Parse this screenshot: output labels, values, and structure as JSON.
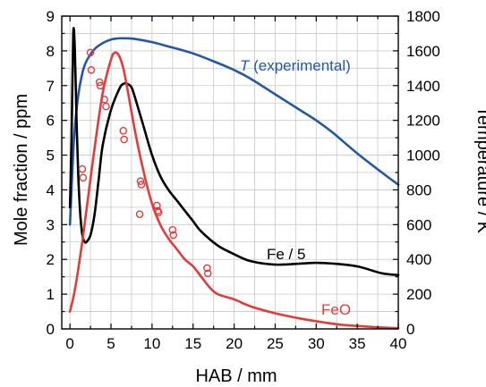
{
  "chart_data": {
    "type": "line",
    "xlabel": "HAB / mm",
    "ylabel_left": "Mole fraction / ppm",
    "ylabel_right": "Temperature / K",
    "xlim": [
      -1,
      40
    ],
    "ylim_left": [
      0,
      9
    ],
    "ylim_right": [
      0,
      1800
    ],
    "x_ticks": [
      0,
      5,
      10,
      15,
      20,
      25,
      30,
      35,
      40
    ],
    "y_left_ticks": [
      0,
      1,
      2,
      3,
      4,
      5,
      6,
      7,
      8,
      9
    ],
    "y_right_ticks": [
      0,
      200,
      400,
      600,
      800,
      1000,
      1200,
      1400,
      1600,
      1800
    ],
    "grid": true,
    "colors": {
      "temperature": "#2457a6",
      "feo": "#e03c3c",
      "fe": "#000000",
      "markers": "#e03c3c"
    },
    "annotations": {
      "temperature_italic": "T",
      "temperature_rest": " (experimental)",
      "fe": "Fe / 5",
      "feo": "FeO"
    },
    "series": [
      {
        "key": "temperature",
        "axis": "right",
        "x": [
          0,
          0.5,
          1,
          1.5,
          2,
          3,
          4,
          5,
          6,
          7,
          8,
          10,
          12,
          15,
          18,
          20,
          22,
          25,
          28,
          30,
          32,
          35,
          38,
          40
        ],
        "values": [
          600,
          1100,
          1340,
          1470,
          1540,
          1610,
          1645,
          1665,
          1672,
          1672,
          1668,
          1650,
          1625,
          1585,
          1530,
          1490,
          1440,
          1350,
          1260,
          1200,
          1130,
          1010,
          900,
          830
        ]
      },
      {
        "key": "feo",
        "axis": "left",
        "x": [
          0,
          0.5,
          1,
          1.5,
          2,
          3,
          4,
          5,
          5.5,
          6,
          6.5,
          7,
          8,
          9,
          10,
          11,
          12,
          13,
          14,
          15,
          16,
          17,
          18,
          20,
          22,
          25,
          28,
          30,
          33,
          36,
          38,
          40
        ],
        "values": [
          0.5,
          1.0,
          1.7,
          2.5,
          3.4,
          5.2,
          6.8,
          7.75,
          7.95,
          7.85,
          7.5,
          6.9,
          5.6,
          4.5,
          3.6,
          3.0,
          2.6,
          2.3,
          2.0,
          1.8,
          1.5,
          1.2,
          1.0,
          0.85,
          0.65,
          0.45,
          0.3,
          0.22,
          0.12,
          0.07,
          0.04,
          0.02
        ]
      },
      {
        "key": "fe",
        "axis": "left",
        "x": [
          0,
          0.2,
          0.4,
          0.6,
          0.8,
          1,
          1.2,
          1.4,
          1.6,
          1.8,
          2,
          2.5,
          3,
          3.5,
          4,
          5,
          6,
          6.5,
          7,
          7.5,
          8,
          9,
          10,
          11,
          12,
          13,
          14,
          15,
          16,
          18,
          20,
          22,
          25,
          28,
          30,
          32,
          35,
          38,
          40
        ],
        "values": [
          3.5,
          5.5,
          8.5,
          8.0,
          6.0,
          4.5,
          3.5,
          2.9,
          2.6,
          2.5,
          2.5,
          2.7,
          3.3,
          4.3,
          5.3,
          6.3,
          6.9,
          7.05,
          7.05,
          6.95,
          6.6,
          5.8,
          5.0,
          4.4,
          4.0,
          3.7,
          3.4,
          3.1,
          2.8,
          2.4,
          2.15,
          1.95,
          1.85,
          1.88,
          1.9,
          1.88,
          1.8,
          1.6,
          1.55
        ]
      }
    ],
    "markers": {
      "key": "feo_measured",
      "axis": "left",
      "points": [
        [
          2.5,
          7.95
        ],
        [
          2.6,
          7.45
        ],
        [
          3.6,
          7.1
        ],
        [
          3.7,
          7.0
        ],
        [
          4.2,
          6.6
        ],
        [
          4.4,
          6.4
        ],
        [
          1.5,
          4.6
        ],
        [
          1.6,
          4.35
        ],
        [
          6.5,
          5.7
        ],
        [
          6.6,
          5.45
        ],
        [
          8.6,
          4.25
        ],
        [
          8.7,
          4.15
        ],
        [
          8.5,
          3.3
        ],
        [
          10.6,
          3.55
        ],
        [
          10.7,
          3.4
        ],
        [
          10.8,
          3.35
        ],
        [
          12.5,
          2.85
        ],
        [
          12.6,
          2.7
        ],
        [
          16.7,
          1.75
        ],
        [
          16.8,
          1.6
        ]
      ]
    }
  }
}
